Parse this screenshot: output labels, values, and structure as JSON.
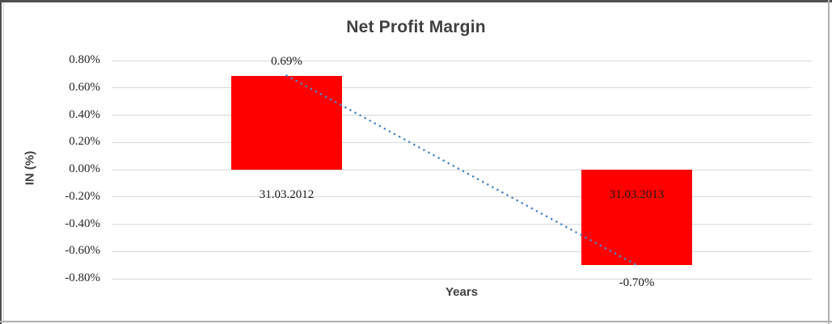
{
  "chart_data": {
    "type": "bar",
    "title": "Net Profit Margin",
    "xlabel": "Years",
    "ylabel": "IN (%)",
    "unit": "percent",
    "categories": [
      "31.03.2012",
      "31.03.2013"
    ],
    "series": [
      {
        "name": "Net Profit Margin",
        "color": "#ff0000",
        "values": [
          0.69,
          -0.7
        ]
      }
    ],
    "data_labels": [
      "0.69%",
      "-0.70%"
    ],
    "yticks": [
      {
        "value": 0.8,
        "label": "0.80%"
      },
      {
        "value": 0.6,
        "label": "0.60%"
      },
      {
        "value": 0.4,
        "label": "0.40%"
      },
      {
        "value": 0.2,
        "label": "0.20%"
      },
      {
        "value": 0.0,
        "label": "0.00%"
      },
      {
        "value": -0.2,
        "label": "-0.20%"
      },
      {
        "value": -0.4,
        "label": "-0.40%"
      },
      {
        "value": -0.6,
        "label": "-0.60%"
      },
      {
        "value": -0.8,
        "label": "-0.80%"
      }
    ],
    "ylim": [
      -0.8,
      0.8
    ],
    "grid": "horizontal",
    "legend": "none",
    "trendline": {
      "type": "linear",
      "style": "dotted",
      "color": "#4e87c8",
      "points": [
        [
          0,
          0.69
        ],
        [
          1,
          -0.7
        ]
      ]
    }
  },
  "colors": {
    "bar": "#ff0000",
    "trendline": "#4e87c8",
    "gridline": "#d9d9d9",
    "title_text": "#404040",
    "tick_text": "#262626",
    "frame_dark": "#4f4f4f",
    "frame_light": "#b0b0b0",
    "chart_border": "#d9d9d9",
    "background": "#ffffff"
  }
}
